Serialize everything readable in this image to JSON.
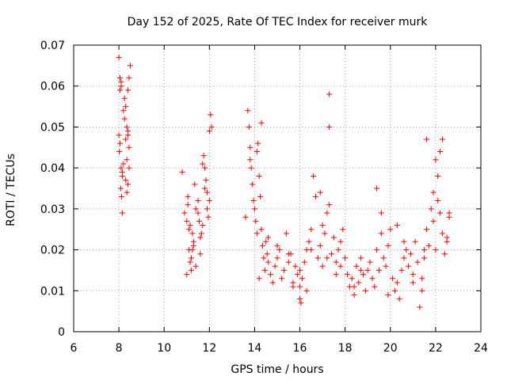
{
  "chart_data": {
    "type": "scatter",
    "title": "Day 152 of 2025, Rate Of TEC Index for receiver murk",
    "xlabel": "GPS time / hours",
    "ylabel": "ROTI / TECUs",
    "xlim": [
      6,
      24
    ],
    "ylim": [
      0,
      0.07
    ],
    "xticks": [
      "6",
      "8",
      "10",
      "12",
      "14",
      "16",
      "18",
      "20",
      "22",
      "24"
    ],
    "yticks": [
      "0",
      "0.01",
      "0.02",
      "0.03",
      "0.04",
      "0.05",
      "0.06",
      "0.07"
    ],
    "grid": true,
    "marker": "plus",
    "color": "#ff0000",
    "series": [
      {
        "name": "ROTI",
        "x": [
          8.0,
          8.05,
          8.1,
          8.0,
          8.05,
          8.1,
          8.15,
          8.02,
          8.08,
          8.12,
          8.2,
          8.25,
          8.3,
          8.35,
          8.4,
          8.45,
          8.5,
          8.3,
          8.35,
          8.4,
          8.45,
          8.15,
          8.2,
          8.25,
          8.1,
          8.15,
          8.3,
          8.4,
          8.05,
          8.45,
          8.35,
          8.4,
          10.8,
          10.9,
          11.0,
          11.05,
          11.1,
          11.15,
          11.2,
          11.25,
          11.3,
          11.35,
          11.4,
          11.5,
          11.6,
          11.7,
          11.75,
          11.8,
          11.85,
          11.9,
          11.95,
          12.0,
          12.05,
          12.1,
          11.0,
          11.05,
          11.1,
          11.2,
          11.3,
          11.5,
          11.6,
          11.7,
          11.8,
          11.9,
          12.0,
          11.15,
          11.25,
          11.4,
          11.55,
          11.65,
          13.6,
          13.7,
          13.75,
          13.8,
          13.85,
          13.9,
          13.95,
          14.0,
          14.05,
          14.1,
          14.15,
          14.2,
          14.25,
          14.3,
          14.35,
          14.4,
          14.45,
          14.5,
          14.55,
          14.6,
          14.7,
          14.8,
          14.9,
          15.0,
          15.1,
          15.2,
          15.3,
          15.4,
          15.5,
          15.6,
          15.7,
          15.8,
          15.9,
          16.0,
          16.1,
          16.2,
          16.3,
          16.4,
          16.5,
          16.6,
          16.7,
          16.8,
          16.9,
          17.0,
          17.1,
          17.2,
          17.3,
          17.4,
          17.5,
          17.6,
          17.7,
          17.8,
          17.9,
          18.0,
          13.8,
          14.3,
          14.6,
          15.0,
          15.5,
          16.0,
          16.5,
          17.0,
          17.3,
          17.3,
          16.05,
          16.0,
          16.9,
          17.2,
          14.1,
          14.2,
          15.7,
          16.3,
          17.6,
          17.8,
          18.1,
          18.2,
          18.3,
          18.4,
          18.5,
          18.6,
          18.7,
          18.8,
          18.9,
          19.0,
          19.1,
          19.2,
          19.3,
          19.4,
          19.5,
          19.6,
          19.7,
          19.8,
          19.9,
          20.0,
          20.1,
          20.2,
          20.3,
          20.4,
          20.5,
          20.6,
          20.7,
          20.8,
          20.9,
          21.0,
          21.1,
          21.2,
          21.3,
          21.4,
          21.5,
          21.6,
          21.7,
          21.8,
          21.9,
          22.0,
          22.1,
          22.2,
          22.3,
          22.4,
          22.5,
          22.6,
          21.4,
          21.6,
          21.9,
          22.0,
          22.1,
          22.2,
          22.5,
          19.4,
          19.6,
          20.3,
          18.4,
          18.7,
          19.9,
          20.6,
          21.0,
          21.5,
          22.3,
          22.6
        ],
        "y": [
          0.067,
          0.062,
          0.06,
          0.048,
          0.046,
          0.04,
          0.038,
          0.044,
          0.035,
          0.033,
          0.041,
          0.057,
          0.055,
          0.05,
          0.048,
          0.045,
          0.065,
          0.037,
          0.042,
          0.059,
          0.062,
          0.029,
          0.054,
          0.052,
          0.061,
          0.039,
          0.047,
          0.036,
          0.059,
          0.04,
          0.034,
          0.049,
          0.039,
          0.029,
          0.027,
          0.033,
          0.02,
          0.017,
          0.015,
          0.024,
          0.022,
          0.036,
          0.03,
          0.032,
          0.019,
          0.026,
          0.043,
          0.04,
          0.037,
          0.034,
          0.028,
          0.049,
          0.053,
          0.05,
          0.014,
          0.031,
          0.025,
          0.018,
          0.021,
          0.029,
          0.023,
          0.041,
          0.035,
          0.03,
          0.032,
          0.026,
          0.02,
          0.016,
          0.027,
          0.024,
          0.028,
          0.054,
          0.05,
          0.045,
          0.04,
          0.036,
          0.032,
          0.03,
          0.027,
          0.044,
          0.046,
          0.038,
          0.033,
          0.025,
          0.021,
          0.018,
          0.015,
          0.022,
          0.019,
          0.017,
          0.014,
          0.012,
          0.016,
          0.018,
          0.02,
          0.013,
          0.015,
          0.024,
          0.017,
          0.019,
          0.012,
          0.016,
          0.014,
          0.008,
          0.013,
          0.017,
          0.02,
          0.022,
          0.025,
          0.038,
          0.033,
          0.018,
          0.021,
          0.026,
          0.024,
          0.029,
          0.031,
          0.019,
          0.023,
          0.017,
          0.02,
          0.022,
          0.025,
          0.018,
          0.042,
          0.051,
          0.023,
          0.021,
          0.019,
          0.015,
          0.02,
          0.016,
          0.058,
          0.05,
          0.007,
          0.011,
          0.034,
          0.018,
          0.024,
          0.013,
          0.011,
          0.01,
          0.014,
          0.016,
          0.014,
          0.011,
          0.013,
          0.009,
          0.016,
          0.012,
          0.018,
          0.014,
          0.01,
          0.015,
          0.017,
          0.013,
          0.011,
          0.02,
          0.015,
          0.024,
          0.018,
          0.016,
          0.021,
          0.025,
          0.013,
          0.01,
          0.012,
          0.008,
          0.015,
          0.018,
          0.02,
          0.016,
          0.019,
          0.014,
          0.022,
          0.017,
          0.006,
          0.013,
          0.018,
          0.025,
          0.021,
          0.03,
          0.027,
          0.042,
          0.032,
          0.029,
          0.024,
          0.019,
          0.022,
          0.028,
          0.01,
          0.047,
          0.034,
          0.02,
          0.038,
          0.044,
          0.023,
          0.035,
          0.029,
          0.026,
          0.011,
          0.015,
          0.009,
          0.022,
          0.012,
          0.02,
          0.047,
          0.029
        ]
      }
    ]
  }
}
